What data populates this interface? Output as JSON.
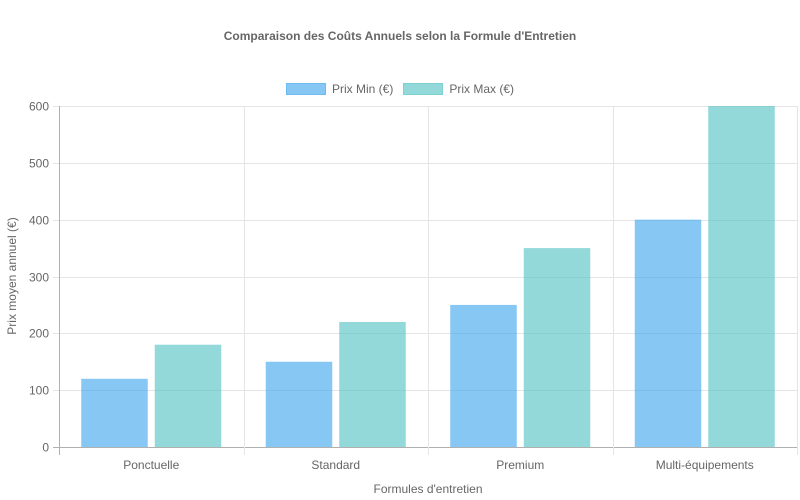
{
  "chart": {
    "title": "Comparaison des Coûts Annuels selon la Formule d'Entretien",
    "xlabel": "Formules d'entretien",
    "ylabel": "Prix moyen annuel (€)",
    "legend": [
      {
        "label": "Prix Min (€)",
        "color": "#36A2EB"
      },
      {
        "label": "Prix Max (€)",
        "color": "#4BC0C0"
      }
    ]
  },
  "chart_data": {
    "type": "bar",
    "title": "Comparaison des Coûts Annuels selon la Formule d'Entretien",
    "xlabel": "Formules d'entretien",
    "ylabel": "Prix moyen annuel (€)",
    "categories": [
      "Ponctuelle",
      "Standard",
      "Premium",
      "Multi-équipements"
    ],
    "series": [
      {
        "name": "Prix Min (€)",
        "values": [
          120,
          150,
          250,
          400
        ],
        "color": "#36A2EB"
      },
      {
        "name": "Prix Max (€)",
        "values": [
          180,
          220,
          350,
          600
        ],
        "color": "#4BC0C0"
      }
    ],
    "ylim": [
      0,
      600
    ],
    "yticks": [
      0,
      100,
      200,
      300,
      400,
      500,
      600
    ],
    "grid": true,
    "legend_position": "top"
  }
}
